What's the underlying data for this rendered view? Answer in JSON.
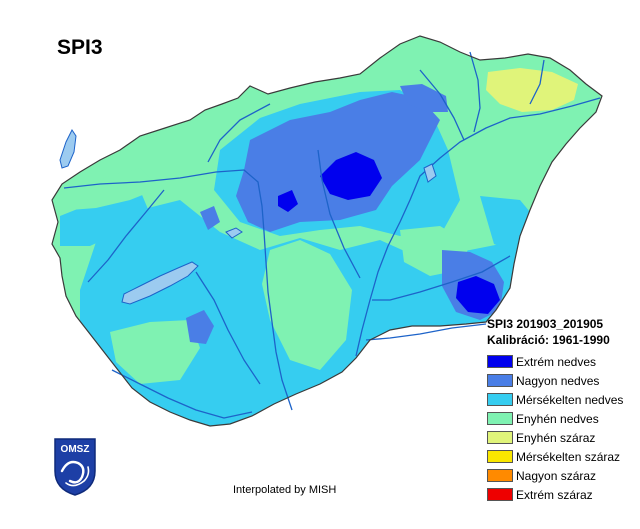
{
  "map": {
    "title": "SPI3",
    "footer": "Interpolated by MISH",
    "country": "Hungary",
    "colors": {
      "background": "#ffffff",
      "border": "#3a3a3a",
      "rivers": "#1d63c9",
      "lakes": "#9ccbf0"
    }
  },
  "legend": {
    "period": "SPI3 201903_201905",
    "calibration": "Kalibráció: 1961-1990",
    "items": [
      {
        "label": "Extrém nedves",
        "color": "#0000ee"
      },
      {
        "label": "Nagyon nedves",
        "color": "#4a7ee6"
      },
      {
        "label": "Mérsékelten nedves",
        "color": "#36cdf0"
      },
      {
        "label": "Enyhén nedves",
        "color": "#7ff2b2"
      },
      {
        "label": "Enyhén száraz",
        "color": "#e0f47a"
      },
      {
        "label": "Mérsékelten száraz",
        "color": "#fae700"
      },
      {
        "label": "Nagyon száraz",
        "color": "#ff8a00"
      },
      {
        "label": "Extrém száraz",
        "color": "#ee0000"
      }
    ]
  },
  "logo": {
    "text": "OMSZ",
    "icon": "omsz-logo-icon"
  }
}
